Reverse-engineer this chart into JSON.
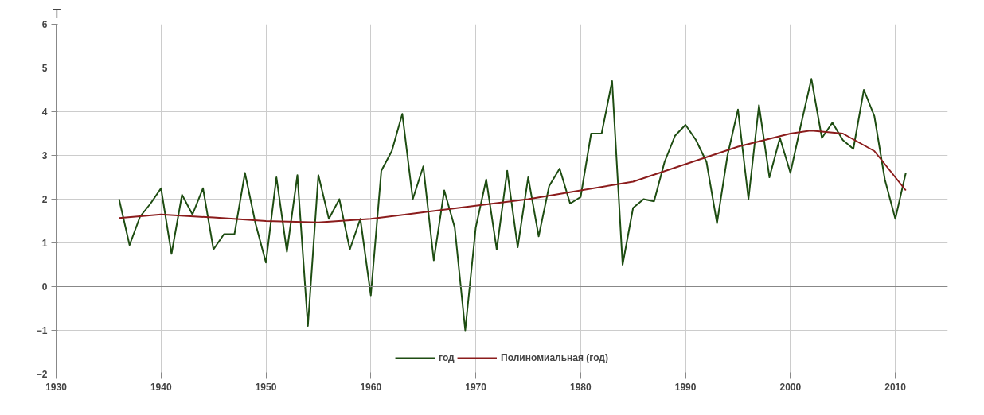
{
  "chart_data": {
    "type": "line",
    "ylabel": "T",
    "x": [
      1936,
      1937,
      1938,
      1939,
      1940,
      1941,
      1942,
      1943,
      1944,
      1945,
      1946,
      1947,
      1948,
      1949,
      1950,
      1951,
      1952,
      1953,
      1954,
      1955,
      1956,
      1957,
      1958,
      1959,
      1960,
      1961,
      1962,
      1963,
      1964,
      1965,
      1966,
      1967,
      1968,
      1969,
      1970,
      1971,
      1972,
      1973,
      1974,
      1975,
      1976,
      1977,
      1978,
      1979,
      1980,
      1981,
      1982,
      1983,
      1984,
      1985,
      1986,
      1987,
      1988,
      1989,
      1990,
      1991,
      1992,
      1993,
      1994,
      1995,
      1996,
      1997,
      1998,
      1999,
      2000,
      2001,
      2002,
      2003,
      2004,
      2005,
      2006,
      2007,
      2008,
      2009,
      2010,
      2011
    ],
    "series": [
      {
        "name": "год",
        "color": "#1e4d12",
        "values": [
          2.0,
          0.95,
          1.6,
          1.9,
          2.25,
          0.75,
          2.1,
          1.65,
          2.25,
          0.85,
          1.2,
          1.2,
          2.6,
          1.45,
          0.55,
          2.5,
          0.8,
          2.55,
          -0.9,
          2.55,
          1.55,
          2.0,
          0.85,
          1.55,
          -0.2,
          2.65,
          3.1,
          3.95,
          2.0,
          2.75,
          0.6,
          2.2,
          1.35,
          -1.0,
          1.35,
          2.45,
          0.85,
          2.65,
          0.9,
          2.5,
          1.15,
          2.3,
          2.7,
          1.9,
          2.05,
          3.5,
          3.5,
          4.7,
          0.5,
          1.8,
          2.0,
          1.95,
          2.85,
          3.45,
          3.7,
          3.35,
          2.85,
          1.45,
          3.0,
          4.05,
          2.0,
          4.15,
          2.5,
          3.4,
          2.6,
          3.7,
          4.75,
          3.4,
          3.75,
          3.35,
          3.15,
          4.5,
          3.9,
          2.45,
          1.55,
          2.6
        ]
      },
      {
        "name": "Полиномиальная (год)",
        "color": "#8b1c1c",
        "x": [
          1936,
          1940,
          1945,
          1950,
          1955,
          1960,
          1965,
          1970,
          1975,
          1980,
          1985,
          1990,
          1995,
          2000,
          2002,
          2005,
          2008,
          2011
        ],
        "values": [
          1.57,
          1.65,
          1.58,
          1.5,
          1.47,
          1.55,
          1.7,
          1.85,
          2.0,
          2.2,
          2.4,
          2.8,
          3.2,
          3.5,
          3.57,
          3.5,
          3.1,
          2.2
        ]
      }
    ],
    "xlim": [
      1930,
      2015
    ],
    "xticks": [
      1930,
      1940,
      1950,
      1960,
      1970,
      1980,
      1990,
      2000,
      2010
    ],
    "ylim": [
      -2,
      6
    ],
    "yticks": [
      -2,
      -1,
      0,
      1,
      2,
      3,
      4,
      5,
      6
    ],
    "grid": true,
    "legend": "bottom",
    "line_style": "solid",
    "marker": "none"
  }
}
